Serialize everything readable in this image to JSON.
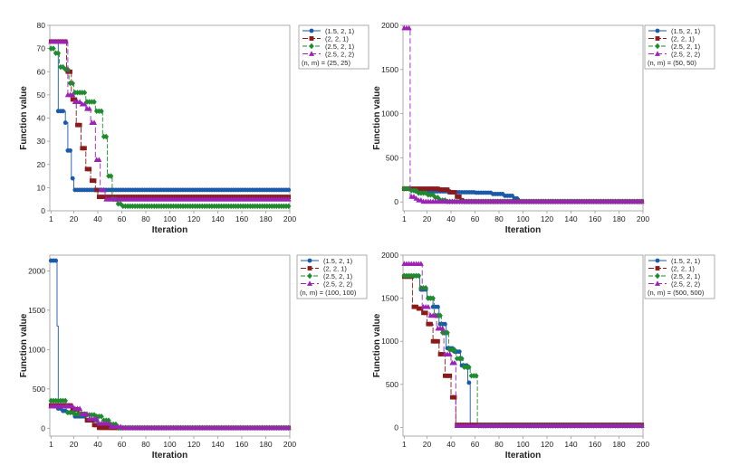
{
  "colors": {
    "series": [
      "#1a5aa8",
      "#8b1a1a",
      "#1f8a2e",
      "#9b22b5"
    ],
    "axis": "#9a9a9a",
    "text": "#222222"
  },
  "chart_data": [
    {
      "type": "line",
      "xlabel": "Iteration",
      "ylabel": "Function value",
      "xlim": [
        0,
        200
      ],
      "ylim": [
        0,
        80
      ],
      "xticks": [
        "1",
        "20",
        "40",
        "60",
        "80",
        "100",
        "120",
        "140",
        "160",
        "180",
        "200"
      ],
      "yticks": [
        "0",
        "10",
        "20",
        "30",
        "40",
        "50",
        "60",
        "70",
        "80"
      ],
      "legend": {
        "entries": [
          "(1.5, 2, 1)",
          "(2, 2, 1)",
          "(2.5, 2, 1)",
          "(2.5, 2, 2)"
        ],
        "note": "(n, m) = (25, 25)"
      },
      "series": [
        {
          "name": "(1.5, 2, 1)",
          "marker": "circle",
          "x": [
            1,
            6,
            7,
            12,
            13,
            15,
            18,
            20,
            200
          ],
          "y": [
            73,
            73,
            43,
            43,
            38,
            26,
            14,
            9,
            9
          ]
        },
        {
          "name": "(2, 2, 1)",
          "marker": "square",
          "x": [
            1,
            10,
            14,
            18,
            22,
            26,
            30,
            34,
            38,
            40,
            200
          ],
          "y": [
            73,
            73,
            60,
            48,
            37,
            27,
            18,
            13,
            9,
            6,
            6
          ]
        },
        {
          "name": "(2.5, 2, 1)",
          "marker": "diamond",
          "x": [
            1,
            4,
            8,
            12,
            16,
            20,
            30,
            38,
            44,
            48,
            52,
            56,
            60,
            200
          ],
          "y": [
            70,
            68,
            62,
            61,
            55,
            51,
            47,
            43,
            32,
            15,
            5,
            3,
            2,
            2
          ]
        },
        {
          "name": "(2.5, 2, 2)",
          "marker": "triangle",
          "x": [
            1,
            10,
            15,
            20,
            26,
            30,
            34,
            38,
            42,
            46,
            200
          ],
          "y": [
            73,
            73,
            50,
            47,
            46,
            44,
            38,
            22,
            9,
            5,
            5
          ]
        }
      ]
    },
    {
      "type": "line",
      "xlabel": "Iteration",
      "ylabel": "Function value",
      "xlim": [
        0,
        200
      ],
      "ylim": [
        -100,
        2000
      ],
      "xticks": [
        "1",
        "20",
        "40",
        "60",
        "80",
        "100",
        "120",
        "140",
        "160",
        "180",
        "200"
      ],
      "yticks": [
        "0",
        "500",
        "1000",
        "1500",
        "2000"
      ],
      "legend": {
        "entries": [
          "(1.5, 2, 1)",
          "(2, 2, 1)",
          "(2.5, 2, 1)",
          "(2.5, 2, 2)"
        ],
        "note": "(n, m) = (50, 50)"
      },
      "series": [
        {
          "name": "(1.5, 2, 1)",
          "marker": "circle",
          "x": [
            1,
            10,
            40,
            60,
            75,
            85,
            92,
            97,
            200
          ],
          "y": [
            150,
            120,
            110,
            105,
            90,
            70,
            40,
            5,
            5
          ]
        },
        {
          "name": "(2, 2, 1)",
          "marker": "square",
          "x": [
            1,
            25,
            30,
            38,
            44,
            48,
            50,
            200
          ],
          "y": [
            150,
            150,
            140,
            110,
            60,
            20,
            5,
            5
          ]
        },
        {
          "name": "(2.5, 2, 1)",
          "marker": "diamond",
          "x": [
            1,
            6,
            12,
            20,
            26,
            30,
            36,
            200
          ],
          "y": [
            150,
            130,
            100,
            80,
            50,
            20,
            5,
            5
          ]
        },
        {
          "name": "(2.5, 2, 2)",
          "marker": "triangle",
          "x": [
            1,
            5,
            6,
            10,
            12,
            16,
            200
          ],
          "y": [
            1970,
            1970,
            60,
            40,
            20,
            5,
            5
          ]
        }
      ]
    },
    {
      "type": "line",
      "xlabel": "Iteration",
      "ylabel": "Function value",
      "xlim": [
        0,
        200
      ],
      "ylim": [
        -100,
        2200
      ],
      "xticks": [
        "1",
        "20",
        "40",
        "60",
        "80",
        "100",
        "120",
        "140",
        "160",
        "180",
        "200"
      ],
      "yticks": [
        "0",
        "500",
        "1000",
        "1500",
        "2000"
      ],
      "legend": {
        "entries": [
          "(1.5, 2, 1)",
          "(2, 2, 1)",
          "(2.5, 2, 1)",
          "(2.5, 2, 2)"
        ],
        "note": "(n, m) = (100, 100)"
      },
      "series": [
        {
          "name": "(1.5, 2, 1)",
          "marker": "circle",
          "x": [
            1,
            5,
            6,
            7,
            10,
            15,
            20,
            30,
            40,
            50,
            200
          ],
          "y": [
            2130,
            2130,
            1300,
            250,
            220,
            200,
            150,
            100,
            50,
            5,
            5
          ]
        },
        {
          "name": "(2, 2, 1)",
          "marker": "square",
          "x": [
            1,
            14,
            18,
            24,
            30,
            36,
            40,
            200
          ],
          "y": [
            290,
            290,
            240,
            180,
            100,
            40,
            5,
            5
          ]
        },
        {
          "name": "(2.5, 2, 1)",
          "marker": "diamond",
          "x": [
            1,
            10,
            14,
            20,
            30,
            38,
            44,
            50,
            56,
            200
          ],
          "y": [
            350,
            350,
            200,
            180,
            170,
            150,
            100,
            50,
            5,
            5
          ]
        },
        {
          "name": "(2.5, 2, 2)",
          "marker": "triangle",
          "x": [
            1,
            8,
            14,
            20,
            26,
            32,
            40,
            50,
            60,
            200
          ],
          "y": [
            280,
            280,
            280,
            250,
            180,
            120,
            60,
            20,
            5,
            5
          ]
        }
      ]
    },
    {
      "type": "line",
      "xlabel": "Iteration",
      "ylabel": "Function value",
      "xlim": [
        0,
        200
      ],
      "ylim": [
        -100,
        2000
      ],
      "xticks": [
        "1",
        "20",
        "40",
        "60",
        "80",
        "100",
        "120",
        "140",
        "160",
        "180",
        "200"
      ],
      "yticks": [
        "0",
        "500",
        "1000",
        "1500",
        "2000"
      ],
      "legend": {
        "entries": [
          "(1.5, 2, 1)",
          "(2, 2, 1)",
          "(2.5, 2, 1)",
          "(2.5, 2, 2)"
        ],
        "note": "(n, m) = (500, 500)"
      },
      "series": [
        {
          "name": "(1.5, 2, 1)",
          "marker": "circle",
          "x": [
            1,
            8,
            14,
            20,
            25,
            30,
            36,
            42,
            48,
            54,
            56,
            200
          ],
          "y": [
            1760,
            1760,
            1600,
            1500,
            1400,
            1200,
            920,
            880,
            720,
            520,
            30,
            30
          ]
        },
        {
          "name": "(2, 2, 1)",
          "marker": "square",
          "x": [
            1,
            7,
            8,
            12,
            16,
            20,
            25,
            30,
            35,
            40,
            44,
            200
          ],
          "y": [
            1750,
            1750,
            1400,
            1380,
            1330,
            1200,
            1000,
            850,
            600,
            350,
            30,
            30
          ]
        },
        {
          "name": "(2.5, 2, 1)",
          "marker": "diamond",
          "x": [
            1,
            8,
            14,
            20,
            26,
            32,
            38,
            44,
            50,
            56,
            62,
            200
          ],
          "y": [
            1760,
            1760,
            1620,
            1500,
            1300,
            1100,
            900,
            800,
            700,
            600,
            20,
            20
          ]
        },
        {
          "name": "(2.5, 2, 2)",
          "marker": "triangle",
          "x": [
            1,
            12,
            16,
            22,
            28,
            34,
            40,
            44,
            200
          ],
          "y": [
            1900,
            1900,
            1400,
            1300,
            1150,
            850,
            750,
            20,
            20
          ]
        }
      ]
    }
  ]
}
